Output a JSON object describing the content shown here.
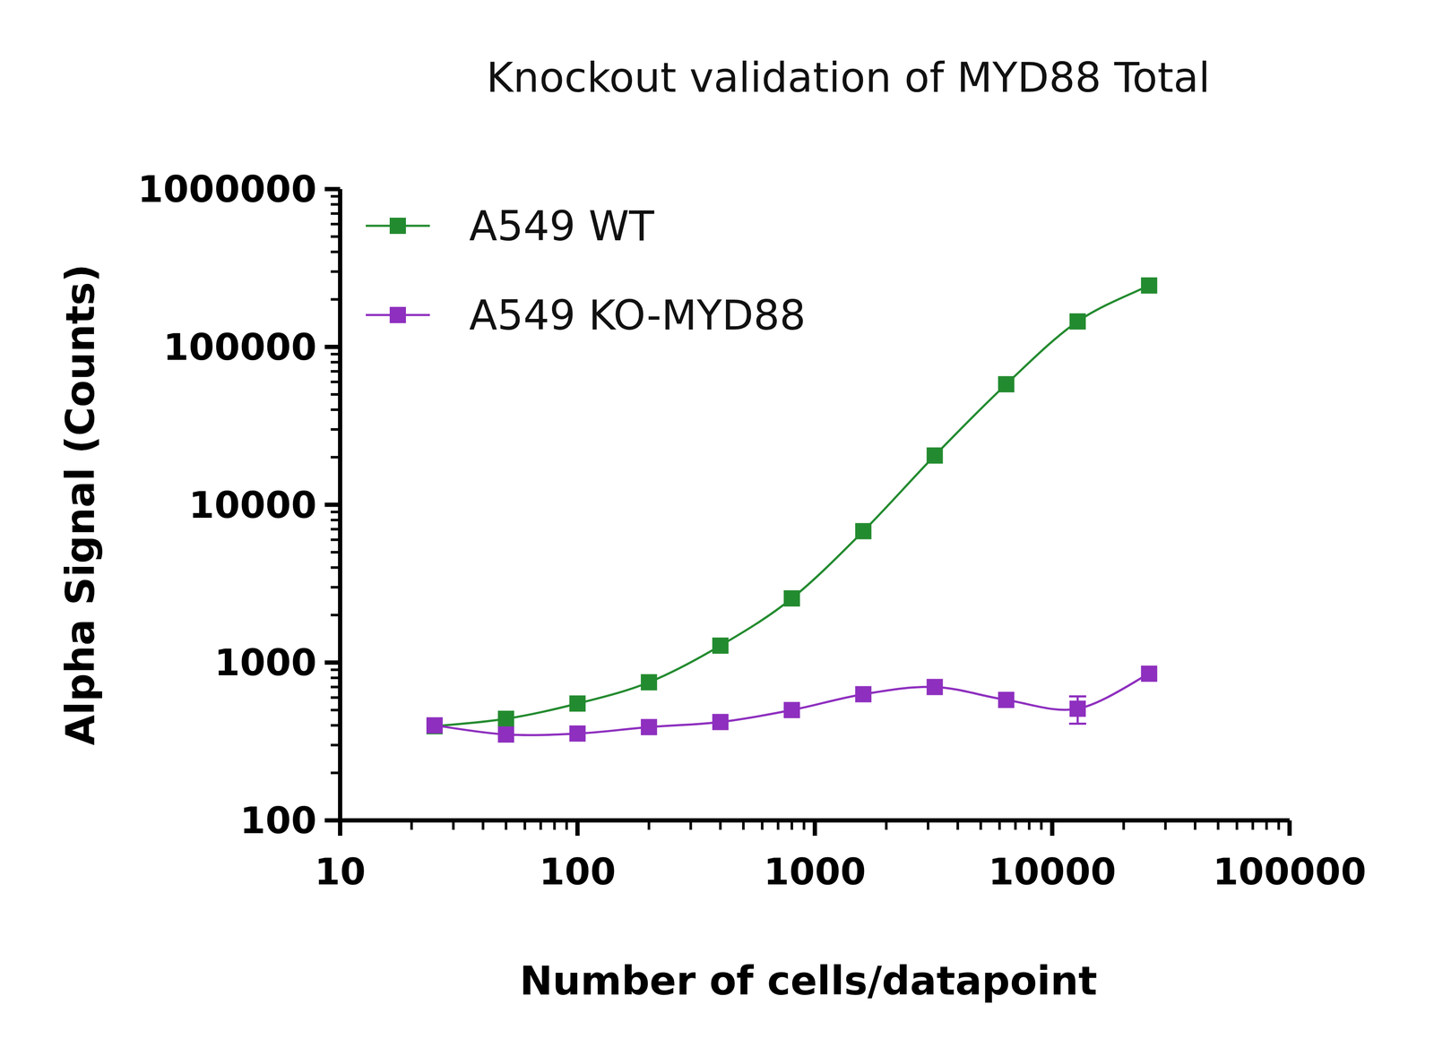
{
  "chart_data": {
    "type": "line",
    "title": "Knockout validation of MYD88 Total",
    "x_label": "Number of cells/datapoint",
    "y_label": "Alpha Signal (Counts)",
    "x": [
      25,
      50,
      100,
      200,
      400,
      800,
      1600,
      3200,
      6400,
      12800,
      25600
    ],
    "series": [
      {
        "name": "A549 WT",
        "color": "#238b2f",
        "marker": "square",
        "line_style": "solid",
        "values": [
          395,
          440,
          550,
          750,
          1280,
          2550,
          6800,
          20500,
          58000,
          145000,
          245000
        ]
      },
      {
        "name": "A549 KO-MYD88",
        "color": "#8e2fbf",
        "marker": "square",
        "line_style": "solid",
        "values": [
          400,
          350,
          355,
          390,
          420,
          500,
          630,
          700,
          580,
          510,
          850
        ],
        "errors": [
          null,
          null,
          null,
          null,
          null,
          null,
          null,
          null,
          null,
          100,
          null
        ]
      }
    ],
    "xlim": [
      10,
      100000
    ],
    "ylim": [
      100,
      1000000
    ],
    "xticks": [
      10,
      100,
      1000,
      10000,
      100000
    ],
    "yticks": [
      100,
      1000,
      10000,
      100000,
      1000000
    ],
    "log": true,
    "grid": false,
    "legend": "upper left"
  }
}
